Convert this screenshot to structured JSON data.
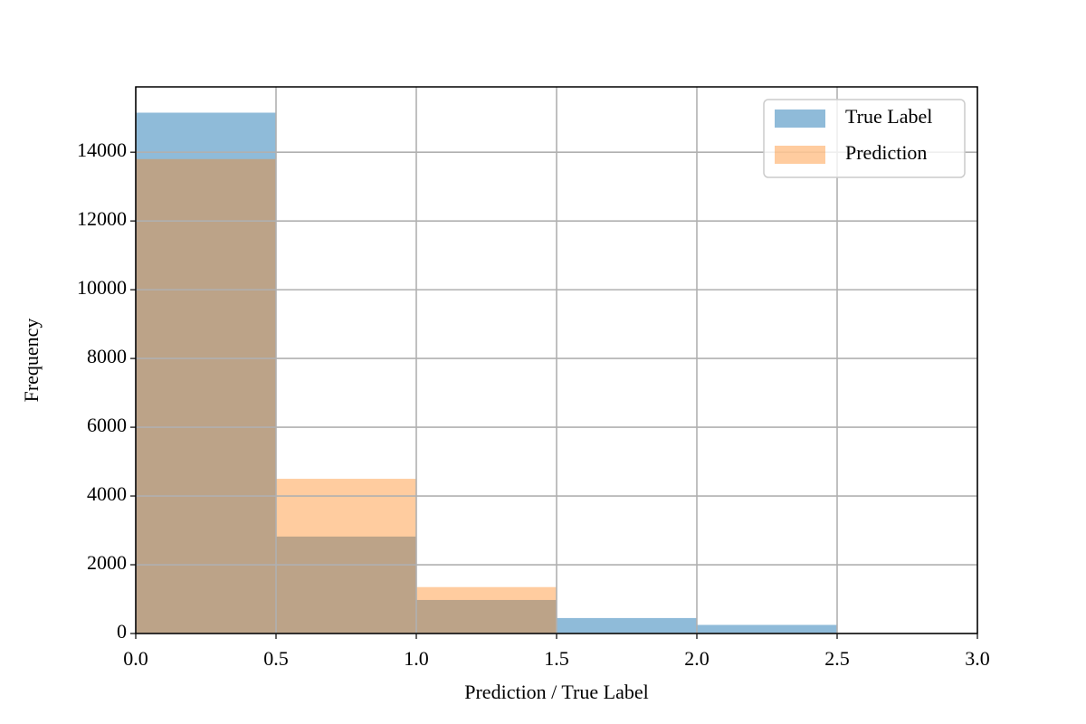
{
  "chart_data": {
    "type": "histogram",
    "x_label": "Prediction / True Label",
    "y_label": "Frequency",
    "bins": [
      0,
      0.5,
      1,
      1.5,
      2,
      2.5,
      3
    ],
    "series": [
      {
        "name": "True Label",
        "color": "#1f77b4",
        "values": [
          15150,
          2820,
          975,
          450,
          250,
          0
        ]
      },
      {
        "name": "Prediction",
        "color": "#ff7f0e",
        "values": [
          13800,
          4500,
          1350,
          0,
          0,
          0
        ]
      }
    ],
    "xlim": [
      0,
      3
    ],
    "xticks": [
      {
        "value": 0,
        "label": "0.0"
      },
      0.5,
      {
        "value": 1,
        "label": "1.0"
      },
      1.5,
      {
        "value": 2,
        "label": "2.0"
      },
      2.5,
      {
        "value": 3,
        "label": "3.0"
      }
    ],
    "ylim": [
      0,
      15900
    ],
    "yticks": [
      0,
      2000,
      4000,
      6000,
      8000,
      10000,
      12000,
      14000
    ],
    "grid": true,
    "legend": "upper right"
  }
}
